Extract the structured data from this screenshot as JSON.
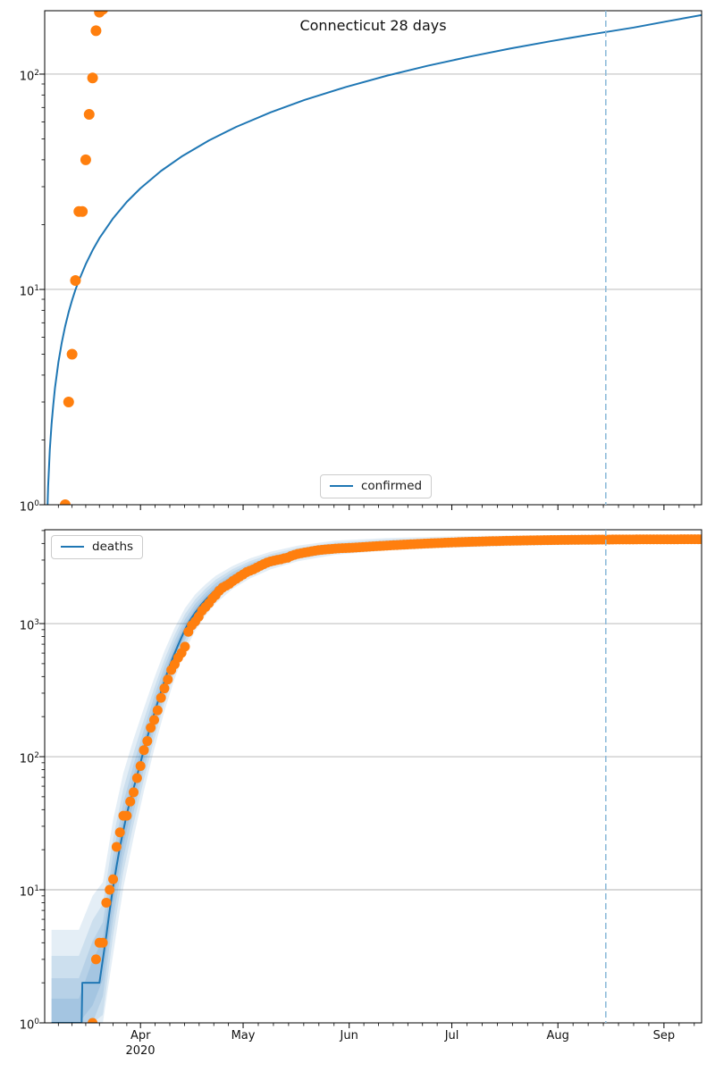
{
  "figure": {
    "title": "Connecticut 28 days",
    "year_label": "2020",
    "legend": {
      "confirmed": "confirmed",
      "deaths": "deaths"
    },
    "colors": {
      "fit_line": "#1f77b4",
      "scatter": "#ff7f0e",
      "band": "#1f77b4",
      "grid": "#b0b0b0",
      "dashed_marker": "#8fbbda",
      "spine": "#000000"
    }
  },
  "axes": {
    "x": {
      "start_date": "2020-03-04",
      "end_date": "2020-09-12",
      "total_days": 192,
      "month_ticks": [
        {
          "day": 28,
          "label": "Apr"
        },
        {
          "day": 58,
          "label": "May"
        },
        {
          "day": 89,
          "label": "Jun"
        },
        {
          "day": 119,
          "label": "Jul"
        },
        {
          "day": 150,
          "label": "Aug"
        },
        {
          "day": 181,
          "label": "Sep"
        }
      ],
      "year_under_day": 28
    },
    "forecast_marker_day": 164
  },
  "chart_data": [
    {
      "type": "line+scatter",
      "name": "confirmed",
      "title": "Connecticut 28 days",
      "legend_label": "confirmed",
      "legend_loc": "lower center",
      "yscale": "log",
      "ylim": [
        1,
        197
      ],
      "grid": "horizontal-major",
      "vline_day": 164,
      "fit_line": [
        [
          0.85,
          1.0
        ],
        [
          1,
          1.21
        ],
        [
          1.5,
          1.8
        ],
        [
          2,
          2.36
        ],
        [
          2.5,
          2.9
        ],
        [
          3,
          3.48
        ],
        [
          4,
          4.58
        ],
        [
          5,
          5.67
        ],
        [
          6,
          6.76
        ],
        [
          7,
          7.84
        ],
        [
          8,
          8.91
        ],
        [
          9,
          9.98
        ],
        [
          10,
          11.0
        ],
        [
          12,
          13.1
        ],
        [
          14,
          15.2
        ],
        [
          16,
          17.3
        ],
        [
          20,
          21.4
        ],
        [
          24,
          25.5
        ],
        [
          28,
          29.5
        ],
        [
          34,
          35.5
        ],
        [
          40,
          41.4
        ],
        [
          48,
          49.2
        ],
        [
          56,
          56.9
        ],
        [
          66,
          66.4
        ],
        [
          76,
          75.9
        ],
        [
          88,
          87.1
        ],
        [
          100,
          98.3
        ],
        [
          112,
          109.4
        ],
        [
          124,
          120.4
        ],
        [
          136,
          131.4
        ],
        [
          148,
          142.3
        ],
        [
          160,
          153.2
        ],
        [
          172,
          164.4
        ],
        [
          182,
          176
        ],
        [
          192,
          188
        ]
      ],
      "scatter": [
        [
          6,
          1
        ],
        [
          7,
          3
        ],
        [
          8,
          5
        ],
        [
          9,
          11
        ],
        [
          10,
          23
        ],
        [
          11,
          23
        ],
        [
          12,
          40
        ],
        [
          13,
          65
        ],
        [
          14,
          96
        ],
        [
          15,
          159
        ],
        [
          16,
          194
        ],
        [
          17,
          200
        ]
      ]
    },
    {
      "type": "line+scatter+bands",
      "name": "deaths",
      "legend_label": "deaths",
      "legend_loc": "upper left",
      "yscale": "log",
      "ylim": [
        1,
        5070
      ],
      "grid": "horizontal-major",
      "vline_day": 164,
      "fit_end_day": 164,
      "fit_line": [
        [
          2,
          1
        ],
        [
          10.8,
          1
        ],
        [
          11,
          2
        ],
        [
          16,
          2
        ],
        [
          17,
          3
        ],
        [
          18,
          4.5
        ],
        [
          19,
          7
        ],
        [
          20,
          10.5
        ],
        [
          21,
          15
        ],
        [
          22,
          21
        ],
        [
          23,
          28
        ],
        [
          24,
          37
        ],
        [
          25,
          47
        ],
        [
          26,
          58
        ],
        [
          27,
          72
        ],
        [
          28,
          90
        ],
        [
          29,
          113
        ],
        [
          30,
          140
        ],
        [
          31,
          172
        ],
        [
          32,
          210
        ],
        [
          33,
          255
        ],
        [
          34,
          308
        ],
        [
          35,
          370
        ],
        [
          36,
          440
        ],
        [
          37,
          518
        ],
        [
          38,
          600
        ],
        [
          39,
          690
        ],
        [
          40,
          790
        ],
        [
          41,
          900
        ],
        [
          42,
          1010
        ],
        [
          43,
          1110
        ],
        [
          44,
          1210
        ],
        [
          45,
          1310
        ],
        [
          46,
          1410
        ],
        [
          47,
          1505
        ],
        [
          48,
          1600
        ],
        [
          49,
          1700
        ],
        [
          50,
          1800
        ],
        [
          52,
          1980
        ],
        [
          54,
          2150
        ],
        [
          56,
          2310
        ],
        [
          58,
          2460
        ],
        [
          60,
          2600
        ],
        [
          62,
          2730
        ],
        [
          64,
          2855
        ],
        [
          66,
          2975
        ],
        [
          68,
          3085
        ],
        [
          70,
          3185
        ],
        [
          72,
          3280
        ],
        [
          74,
          3365
        ],
        [
          76,
          3445
        ],
        [
          78,
          3520
        ],
        [
          80,
          3585
        ],
        [
          82,
          3645
        ],
        [
          84,
          3695
        ],
        [
          86,
          3740
        ],
        [
          88,
          3780
        ],
        [
          90,
          3815
        ],
        [
          93,
          3860
        ],
        [
          96,
          3900
        ],
        [
          100,
          3945
        ],
        [
          104,
          3985
        ],
        [
          108,
          4020
        ],
        [
          112,
          4050
        ],
        [
          116,
          4080
        ],
        [
          120,
          4105
        ],
        [
          124,
          4130
        ],
        [
          128,
          4152
        ],
        [
          132,
          4172
        ],
        [
          136,
          4190
        ],
        [
          140,
          4206
        ],
        [
          144,
          4220
        ],
        [
          148,
          4234
        ],
        [
          152,
          4246
        ],
        [
          156,
          4258
        ],
        [
          160,
          4268
        ],
        [
          164,
          4276
        ]
      ],
      "bands": {
        "levels": [
          1,
          0.72,
          0.48,
          0.26
        ],
        "alpha": 0.12,
        "factor_points": [
          [
            2,
            5.0
          ],
          [
            10,
            5.0
          ],
          [
            14,
            4.5
          ],
          [
            17,
            3.8
          ],
          [
            20,
            3.2
          ],
          [
            23,
            2.7
          ],
          [
            26,
            2.35
          ],
          [
            29,
            2.05
          ],
          [
            32,
            1.85
          ],
          [
            35,
            1.68
          ],
          [
            38,
            1.55
          ],
          [
            41,
            1.45
          ],
          [
            44,
            1.37
          ],
          [
            47,
            1.31
          ],
          [
            50,
            1.27
          ],
          [
            55,
            1.22
          ],
          [
            60,
            1.19
          ],
          [
            66,
            1.165
          ],
          [
            74,
            1.145
          ],
          [
            85,
            1.13
          ],
          [
            100,
            1.115
          ],
          [
            115,
            1.105
          ],
          [
            135,
            1.096
          ],
          [
            150,
            1.092
          ],
          [
            164,
            1.09
          ]
        ]
      },
      "scatter_start_day": 14,
      "scatter_values": [
        1,
        3,
        4,
        4,
        8,
        10,
        12,
        21,
        27,
        36,
        36,
        46,
        54,
        69,
        85,
        112,
        131,
        165,
        189,
        223,
        277,
        326,
        380,
        448,
        494,
        554,
        602,
        671,
        868,
        971,
        1036,
        1127,
        1251,
        1331,
        1423,
        1544,
        1639,
        1764,
        1862,
        1924,
        1992,
        2089,
        2168,
        2257,
        2339,
        2436,
        2495,
        2556,
        2633,
        2718,
        2797,
        2874,
        2932,
        2967,
        3008,
        3041,
        3094,
        3125,
        3219,
        3285,
        3340,
        3380,
        3420,
        3455,
        3490,
        3525,
        3560,
        3580,
        3600,
        3620,
        3640,
        3655,
        3670,
        3685,
        3695,
        3705,
        3715,
        3730,
        3745,
        3758,
        3770,
        3785,
        3800,
        3815,
        3828,
        3840,
        3855,
        3870,
        3882,
        3894,
        3905,
        3918,
        3930,
        3942,
        3954,
        3965,
        3976,
        3988,
        3999,
        4010,
        4020,
        4030,
        4040,
        4050,
        4060,
        4070,
        4079,
        4088,
        4096,
        4104,
        4112,
        4120,
        4127,
        4134,
        4141,
        4148,
        4155,
        4161,
        4167,
        4173,
        4179,
        4185,
        4190,
        4195,
        4200,
        4205,
        4210,
        4214,
        4218,
        4222,
        4226,
        4230,
        4234,
        4238,
        4241,
        4244,
        4247,
        4250,
        4253,
        4256,
        4259,
        4262,
        4264,
        4266,
        4268,
        4270,
        4272,
        4274,
        4276,
        4278,
        4280,
        4281,
        4282,
        4284,
        4285,
        4286,
        4287,
        4288,
        4289,
        4290,
        4291,
        4292,
        4293,
        4294,
        4294,
        4295,
        4296,
        4296,
        4297,
        4297,
        4298,
        4298,
        4299,
        4299,
        4300,
        4300,
        4300,
        4300,
        4300
      ]
    }
  ]
}
